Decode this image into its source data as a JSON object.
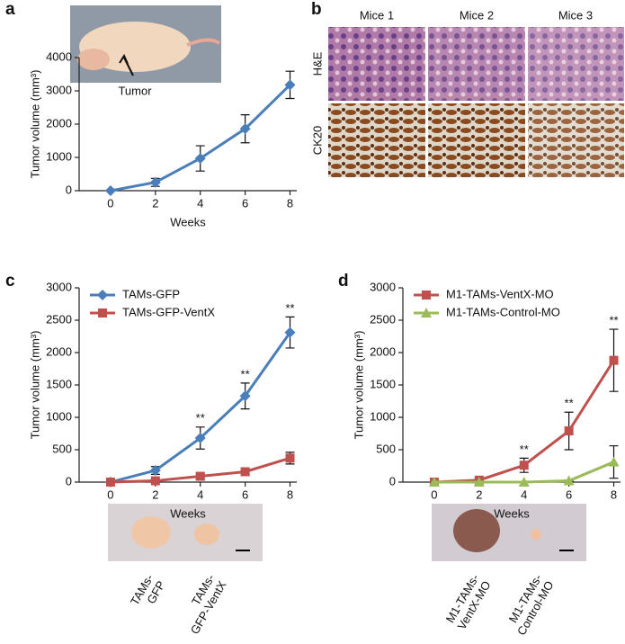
{
  "panels": [
    "a",
    "b",
    "c",
    "d"
  ],
  "photo_a": {
    "label": "Tumor"
  },
  "histology": {
    "columns": [
      "Mice 1",
      "Mice 2",
      "Mice 3"
    ],
    "rows": [
      "H&E",
      "CK20"
    ]
  },
  "photo_c": {
    "labels": [
      [
        "TAMs-",
        "GFP"
      ],
      [
        "TAMs-",
        "GFP-VentX"
      ]
    ]
  },
  "photo_d": {
    "labels": [
      [
        "M1-TAMs-",
        "VentX-MO"
      ],
      [
        "M1-TAMs-",
        "Control-MO"
      ]
    ]
  },
  "chart_data": [
    {
      "type": "line",
      "xlabel": "Weeks",
      "ylabel": "Tumor volume (mm³)",
      "x": [
        0,
        2,
        4,
        6,
        8
      ],
      "xlim": [
        -1.4,
        8.3
      ],
      "xticks": [
        0,
        2,
        4,
        6,
        8
      ],
      "ylim": [
        0,
        4000
      ],
      "yticks": [
        0,
        1000,
        2000,
        3000,
        4000
      ],
      "series": [
        {
          "color": "#4a7ebb",
          "marker": "diamond",
          "values": [
            0,
            250,
            970,
            1860,
            3180
          ],
          "errors": [
            0,
            120,
            380,
            420,
            410
          ]
        }
      ]
    },
    {
      "type": "line",
      "xlabel": "Weeks",
      "ylabel": "Tumor volume (mm³)",
      "legend": "upper left",
      "x": [
        0,
        2,
        4,
        6,
        8
      ],
      "xlim": [
        -1.4,
        8.3
      ],
      "xticks": [
        0,
        2,
        4,
        6,
        8
      ],
      "ylim": [
        0,
        3000
      ],
      "yticks": [
        0,
        500,
        1000,
        1500,
        2000,
        2500,
        3000
      ],
      "significance": [
        null,
        null,
        "**",
        "**",
        "**"
      ],
      "series": [
        {
          "name": "TAMs-GFP",
          "color": "#4a7ebb",
          "marker": "diamond",
          "values": [
            0,
            180,
            680,
            1330,
            2310
          ],
          "errors": [
            0,
            60,
            170,
            200,
            240
          ]
        },
        {
          "name": "TAMs-GFP-VentX",
          "color": "#c0504d",
          "marker": "square",
          "values": [
            0,
            20,
            90,
            160,
            370
          ],
          "errors": [
            0,
            20,
            50,
            50,
            90
          ]
        }
      ]
    },
    {
      "type": "line",
      "xlabel": "Weeks",
      "ylabel": "Tumor volume (mm³)",
      "legend": "upper left",
      "x": [
        0,
        2,
        4,
        6,
        8
      ],
      "xlim": [
        -1.4,
        8.3
      ],
      "xticks": [
        0,
        2,
        4,
        6,
        8
      ],
      "ylim": [
        0,
        3000
      ],
      "yticks": [
        0,
        500,
        1000,
        1500,
        2000,
        2500,
        3000
      ],
      "significance": [
        null,
        null,
        "**",
        "**",
        "**"
      ],
      "series": [
        {
          "name": "M1-TAMs-VentX-MO",
          "color": "#c0504d",
          "marker": "square",
          "values": [
            0,
            30,
            260,
            790,
            1880
          ],
          "errors": [
            0,
            20,
            110,
            290,
            480
          ]
        },
        {
          "name": "M1-TAMs-Control-MO",
          "color": "#9bbb59",
          "marker": "triangle",
          "values": [
            0,
            0,
            0,
            20,
            310
          ],
          "errors": [
            0,
            0,
            0,
            10,
            250
          ]
        }
      ]
    }
  ]
}
